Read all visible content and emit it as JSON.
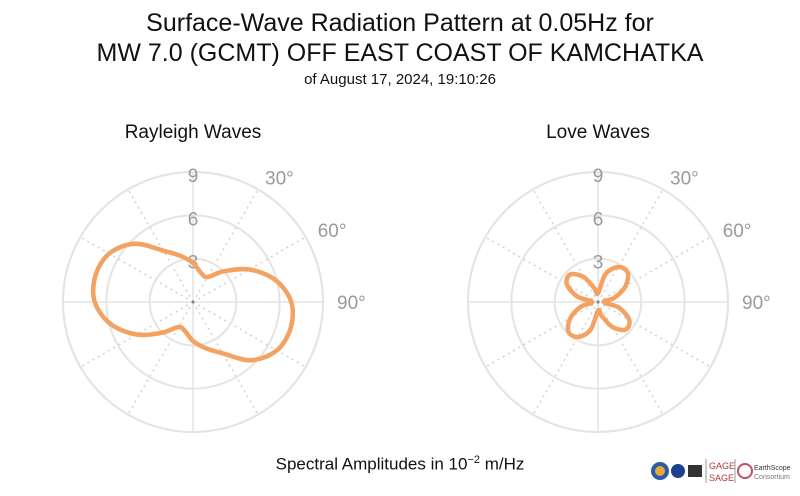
{
  "title": {
    "line1": "Surface-Wave Radiation Pattern at 0.05Hz for",
    "line2": "MW 7.0 (GCMT) OFF EAST COAST OF KAMCHATKA",
    "line3": "of August 17, 2024, 19:10:26"
  },
  "footer": {
    "prefix": "Spectral Amplitudes in ",
    "base": "10",
    "exponent": "−2",
    "unit": " m/Hz"
  },
  "logos": {
    "gage": "GAGE",
    "sage": "SAGE",
    "earthscope": "EarthScope",
    "consortium": "Consortium"
  },
  "colors": {
    "curve": "#f4a261",
    "grid": "#e4e4e4",
    "dotted_grid": "#d4d4d4",
    "tick_label": "#9a9a9a"
  },
  "chart_data": [
    {
      "type": "polar-line",
      "title": "Rayleigh Waves",
      "r_ticks": [
        "3",
        "6",
        "9"
      ],
      "r_max": 9,
      "angle_labels": [
        "30°",
        "60°",
        "90°"
      ],
      "angle_unit": "degrees clockwise from north",
      "series": [
        {
          "theta": [
            0,
            15,
            30,
            45,
            60,
            75,
            90,
            105,
            120,
            135,
            150,
            165,
            180,
            195,
            210,
            225,
            240,
            255,
            270,
            285,
            300,
            315,
            330,
            345
          ],
          "r": [
            2.7,
            2.1,
            2.0,
            3.0,
            4.5,
            5.9,
            6.8,
            7.0,
            6.7,
            5.7,
            4.1,
            3.3,
            2.7,
            2.1,
            2.0,
            3.0,
            4.5,
            5.9,
            6.8,
            7.0,
            6.7,
            5.7,
            4.1,
            3.3
          ]
        }
      ]
    },
    {
      "type": "polar-line",
      "title": "Love Waves",
      "r_ticks": [
        "3",
        "6",
        "9"
      ],
      "r_max": 9,
      "angle_labels": [
        "30°",
        "60°",
        "90°"
      ],
      "angle_unit": "degrees clockwise from north",
      "series": [
        {
          "theta": [
            0,
            15,
            30,
            45,
            60,
            75,
            90,
            105,
            120,
            135,
            150,
            165,
            180,
            195,
            210,
            225,
            240,
            255,
            270,
            285,
            300,
            315,
            330,
            345
          ],
          "r": [
            0.6,
            2.0,
            2.8,
            2.9,
            2.2,
            1.2,
            0.4,
            1.5,
            2.5,
            2.7,
            2.0,
            1.0,
            0.6,
            2.0,
            2.8,
            2.9,
            2.2,
            1.2,
            0.4,
            1.5,
            2.5,
            2.7,
            2.0,
            1.0
          ]
        }
      ]
    }
  ]
}
